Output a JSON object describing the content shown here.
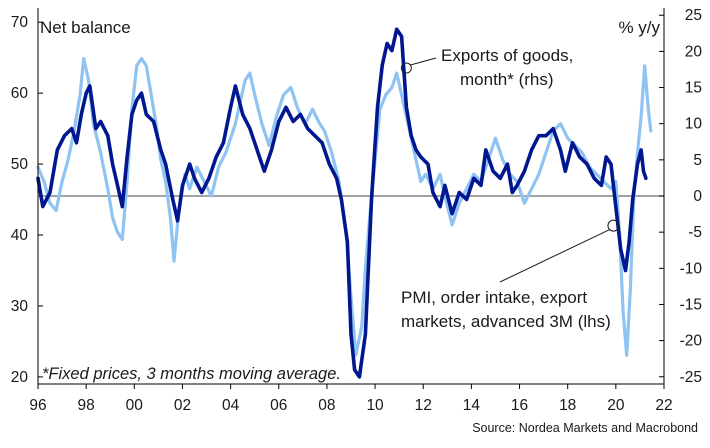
{
  "chart_data": {
    "type": "line",
    "left_axis_label": "Net balance",
    "right_axis_label": "% y/y",
    "left_ylim": [
      19,
      72
    ],
    "right_ylim": [
      -26,
      26
    ],
    "left_ticks": [
      20,
      30,
      40,
      50,
      60,
      70
    ],
    "right_ticks": [
      -25,
      -20,
      -15,
      -10,
      -5,
      0,
      5,
      10,
      15,
      20,
      25
    ],
    "x_range": [
      1996,
      2022
    ],
    "x_ticks": [
      {
        "x": 1996,
        "label": "96"
      },
      {
        "x": 1998,
        "label": "98"
      },
      {
        "x": 2000,
        "label": "00"
      },
      {
        "x": 2002,
        "label": "02"
      },
      {
        "x": 2004,
        "label": "04"
      },
      {
        "x": 2006,
        "label": "06"
      },
      {
        "x": 2008,
        "label": "08"
      },
      {
        "x": 2010,
        "label": "10"
      },
      {
        "x": 2012,
        "label": "12"
      },
      {
        "x": 2014,
        "label": "14"
      },
      {
        "x": 2016,
        "label": "16"
      },
      {
        "x": 2018,
        "label": "18"
      },
      {
        "x": 2020,
        "label": "20"
      },
      {
        "x": 2022,
        "label": "22"
      }
    ],
    "zero_line_rhs": 0,
    "series": [
      {
        "name": "Exports of goods, month* (rhs)",
        "axis": "right",
        "color": "#8ec3f2",
        "points": [
          [
            1996.0,
            4
          ],
          [
            1996.25,
            2
          ],
          [
            1996.5,
            -1
          ],
          [
            1996.75,
            -2
          ],
          [
            1997.0,
            2
          ],
          [
            1997.25,
            5
          ],
          [
            1997.5,
            9
          ],
          [
            1997.75,
            14
          ],
          [
            1997.9,
            19
          ],
          [
            1998.1,
            16
          ],
          [
            1998.3,
            10
          ],
          [
            1998.6,
            6
          ],
          [
            1998.9,
            1
          ],
          [
            1999.1,
            -3
          ],
          [
            1999.3,
            -5
          ],
          [
            1999.5,
            -6
          ],
          [
            1999.7,
            2
          ],
          [
            1999.9,
            12
          ],
          [
            2000.1,
            18
          ],
          [
            2000.3,
            19
          ],
          [
            2000.5,
            18
          ],
          [
            2000.7,
            14
          ],
          [
            2000.9,
            10
          ],
          [
            2001.1,
            5
          ],
          [
            2001.3,
            2
          ],
          [
            2001.5,
            -3
          ],
          [
            2001.65,
            -9
          ],
          [
            2001.85,
            -2
          ],
          [
            2002.1,
            3
          ],
          [
            2002.3,
            1
          ],
          [
            2002.6,
            4
          ],
          [
            2002.9,
            2
          ],
          [
            2003.2,
            0
          ],
          [
            2003.5,
            4
          ],
          [
            2003.8,
            6
          ],
          [
            2004.0,
            8
          ],
          [
            2004.2,
            10
          ],
          [
            2004.4,
            13
          ],
          [
            2004.6,
            16
          ],
          [
            2004.8,
            17
          ],
          [
            2005.0,
            14
          ],
          [
            2005.3,
            10
          ],
          [
            2005.6,
            7
          ],
          [
            2005.9,
            11
          ],
          [
            2006.2,
            14
          ],
          [
            2006.5,
            15
          ],
          [
            2006.8,
            12
          ],
          [
            2007.1,
            10
          ],
          [
            2007.4,
            12
          ],
          [
            2007.7,
            10
          ],
          [
            2007.9,
            9
          ],
          [
            2008.2,
            6
          ],
          [
            2008.5,
            2
          ],
          [
            2008.8,
            -5
          ],
          [
            2009.0,
            -14
          ],
          [
            2009.2,
            -22
          ],
          [
            2009.45,
            -18
          ],
          [
            2009.6,
            -10
          ],
          [
            2009.8,
            -2
          ],
          [
            2010.0,
            5
          ],
          [
            2010.2,
            12
          ],
          [
            2010.45,
            14
          ],
          [
            2010.7,
            15
          ],
          [
            2010.9,
            17
          ],
          [
            2011.1,
            14
          ],
          [
            2011.3,
            11
          ],
          [
            2011.5,
            8
          ],
          [
            2011.7,
            5
          ],
          [
            2011.9,
            2
          ],
          [
            2012.1,
            3
          ],
          [
            2012.4,
            1
          ],
          [
            2012.7,
            3
          ],
          [
            2012.9,
            0
          ],
          [
            2013.2,
            -4
          ],
          [
            2013.5,
            -1
          ],
          [
            2013.8,
            1
          ],
          [
            2014.1,
            3
          ],
          [
            2014.4,
            2
          ],
          [
            2014.7,
            5
          ],
          [
            2015.0,
            8
          ],
          [
            2015.3,
            5
          ],
          [
            2015.6,
            3
          ],
          [
            2015.9,
            2
          ],
          [
            2016.2,
            -1
          ],
          [
            2016.5,
            1
          ],
          [
            2016.8,
            3
          ],
          [
            2017.1,
            6
          ],
          [
            2017.4,
            9
          ],
          [
            2017.7,
            10
          ],
          [
            2018.0,
            8
          ],
          [
            2018.3,
            7
          ],
          [
            2018.6,
            6
          ],
          [
            2018.9,
            4
          ],
          [
            2019.2,
            3
          ],
          [
            2019.5,
            2
          ],
          [
            2019.8,
            1
          ],
          [
            2020.0,
            2
          ],
          [
            2020.15,
            -5
          ],
          [
            2020.3,
            -16
          ],
          [
            2020.45,
            -22
          ],
          [
            2020.6,
            -13
          ],
          [
            2020.75,
            0
          ],
          [
            2020.9,
            6
          ],
          [
            2021.05,
            11
          ],
          [
            2021.2,
            18
          ],
          [
            2021.35,
            12
          ],
          [
            2021.45,
            9
          ]
        ]
      },
      {
        "name": "PMI, order intake, export markets, advanced 3M (lhs)",
        "axis": "left",
        "color": "#00178f",
        "points": [
          [
            1996.0,
            48
          ],
          [
            1996.2,
            44
          ],
          [
            1996.5,
            46
          ],
          [
            1996.8,
            52
          ],
          [
            1997.1,
            54
          ],
          [
            1997.4,
            55
          ],
          [
            1997.6,
            53
          ],
          [
            1997.8,
            57
          ],
          [
            1998.0,
            60
          ],
          [
            1998.15,
            61
          ],
          [
            1998.4,
            55
          ],
          [
            1998.6,
            56
          ],
          [
            1998.9,
            54
          ],
          [
            1999.1,
            50
          ],
          [
            1999.3,
            47
          ],
          [
            1999.5,
            44
          ],
          [
            1999.7,
            51
          ],
          [
            1999.9,
            57
          ],
          [
            2000.1,
            59
          ],
          [
            2000.3,
            60
          ],
          [
            2000.5,
            57
          ],
          [
            2000.8,
            56
          ],
          [
            2001.1,
            52
          ],
          [
            2001.3,
            50
          ],
          [
            2001.6,
            45
          ],
          [
            2001.8,
            42
          ],
          [
            2002.0,
            47
          ],
          [
            2002.3,
            50
          ],
          [
            2002.5,
            48
          ],
          [
            2002.8,
            46
          ],
          [
            2003.1,
            48
          ],
          [
            2003.4,
            51
          ],
          [
            2003.7,
            53
          ],
          [
            2004.0,
            58
          ],
          [
            2004.2,
            61
          ],
          [
            2004.5,
            57
          ],
          [
            2004.8,
            55
          ],
          [
            2005.1,
            52
          ],
          [
            2005.4,
            49
          ],
          [
            2005.7,
            52
          ],
          [
            2006.0,
            56
          ],
          [
            2006.3,
            58
          ],
          [
            2006.6,
            56
          ],
          [
            2006.9,
            57
          ],
          [
            2007.2,
            55
          ],
          [
            2007.5,
            54
          ],
          [
            2007.8,
            53
          ],
          [
            2008.1,
            50
          ],
          [
            2008.4,
            48
          ],
          [
            2008.6,
            45
          ],
          [
            2008.85,
            39
          ],
          [
            2009.0,
            26
          ],
          [
            2009.15,
            21
          ],
          [
            2009.35,
            20
          ],
          [
            2009.6,
            26
          ],
          [
            2009.85,
            45
          ],
          [
            2010.1,
            58
          ],
          [
            2010.3,
            64
          ],
          [
            2010.5,
            67
          ],
          [
            2010.7,
            66
          ],
          [
            2010.9,
            69
          ],
          [
            2011.1,
            68
          ],
          [
            2011.3,
            58
          ],
          [
            2011.5,
            54
          ],
          [
            2011.7,
            52
          ],
          [
            2011.9,
            51
          ],
          [
            2012.2,
            50
          ],
          [
            2012.4,
            46
          ],
          [
            2012.7,
            44
          ],
          [
            2012.9,
            47
          ],
          [
            2013.2,
            43
          ],
          [
            2013.5,
            46
          ],
          [
            2013.8,
            45
          ],
          [
            2014.1,
            48
          ],
          [
            2014.4,
            47
          ],
          [
            2014.6,
            52
          ],
          [
            2014.9,
            49
          ],
          [
            2015.2,
            48
          ],
          [
            2015.5,
            50
          ],
          [
            2015.7,
            46
          ],
          [
            2015.9,
            47
          ],
          [
            2016.2,
            49
          ],
          [
            2016.5,
            52
          ],
          [
            2016.8,
            54
          ],
          [
            2017.1,
            54
          ],
          [
            2017.4,
            55
          ],
          [
            2017.7,
            52
          ],
          [
            2017.9,
            49
          ],
          [
            2018.2,
            53
          ],
          [
            2018.5,
            51
          ],
          [
            2018.8,
            50
          ],
          [
            2019.1,
            48
          ],
          [
            2019.4,
            47
          ],
          [
            2019.6,
            51
          ],
          [
            2019.8,
            50
          ],
          [
            2020.0,
            44
          ],
          [
            2020.2,
            38
          ],
          [
            2020.4,
            35
          ],
          [
            2020.55,
            39
          ],
          [
            2020.7,
            45
          ],
          [
            2020.9,
            50
          ],
          [
            2021.05,
            52
          ],
          [
            2021.15,
            49
          ],
          [
            2021.25,
            48
          ]
        ]
      }
    ],
    "annotations": {
      "exports_line1": "Exports of goods,",
      "exports_line2": "month* (rhs)",
      "pmi_line1": "PMI, order intake, export",
      "pmi_line2": "markets, advanced 3M (lhs)"
    },
    "footnote": "*Fixed prices, 3 months moving average.",
    "source": "Source: Nordea Markets and Macrobond"
  }
}
